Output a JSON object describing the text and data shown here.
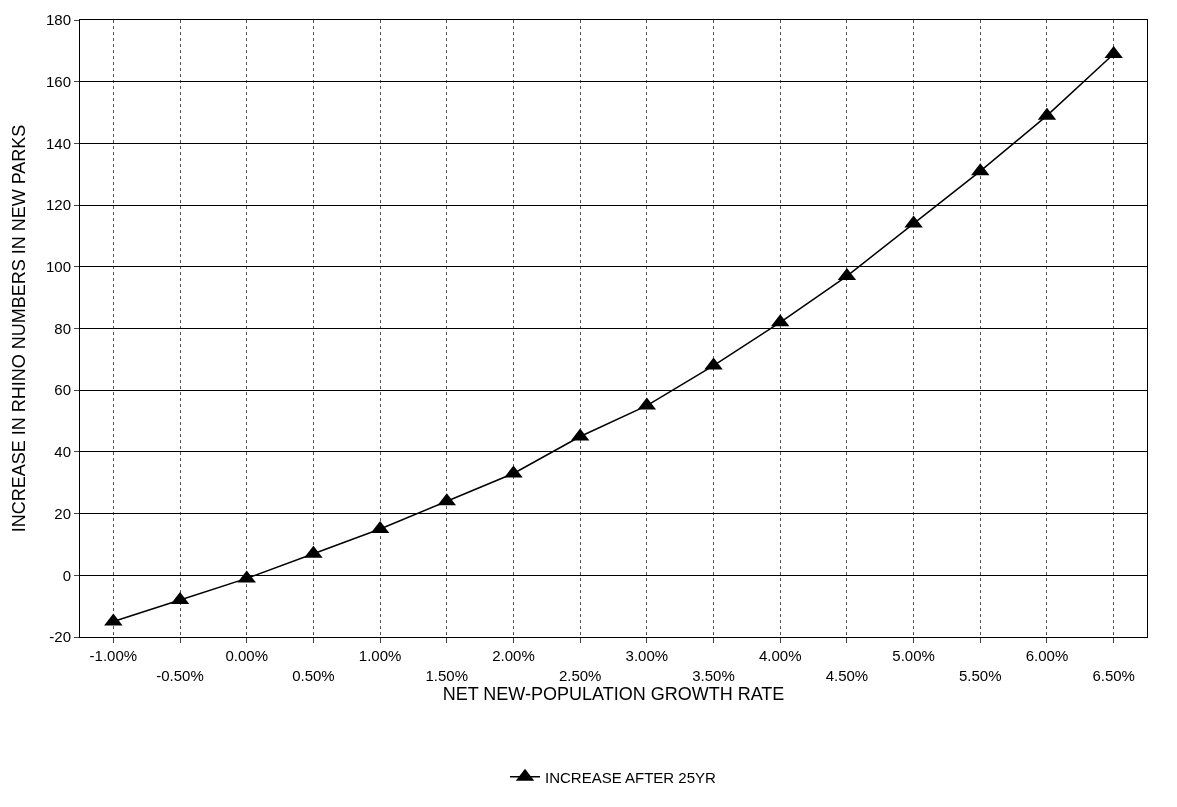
{
  "chart_data": {
    "type": "line",
    "xlabel": "NET NEW-POPULATION GROWTH RATE",
    "ylabel": "INCREASE IN RHINO NUMBERS IN NEW PARKS",
    "categories": [
      "-1.00%",
      "-0.50%",
      "0.00%",
      "0.50%",
      "1.00%",
      "1.50%",
      "2.00%",
      "2.50%",
      "3.00%",
      "3.50%",
      "4.00%",
      "4.50%",
      "5.00%",
      "5.50%",
      "6.00%",
      "6.50%"
    ],
    "series": [
      {
        "name": "INCREASE AFTER 25YR",
        "color": "#000000",
        "values": [
          -15,
          -8,
          -1,
          7,
          15,
          24,
          33,
          45,
          55,
          68,
          82,
          97,
          114,
          131,
          149,
          169
        ]
      }
    ],
    "ylim": [
      -20,
      180
    ],
    "yticks": [
      -20,
      0,
      20,
      40,
      60,
      80,
      100,
      120,
      140,
      160,
      180
    ],
    "grid": true,
    "legend": "bottom",
    "marker": "triangle",
    "line_style": "solid"
  }
}
